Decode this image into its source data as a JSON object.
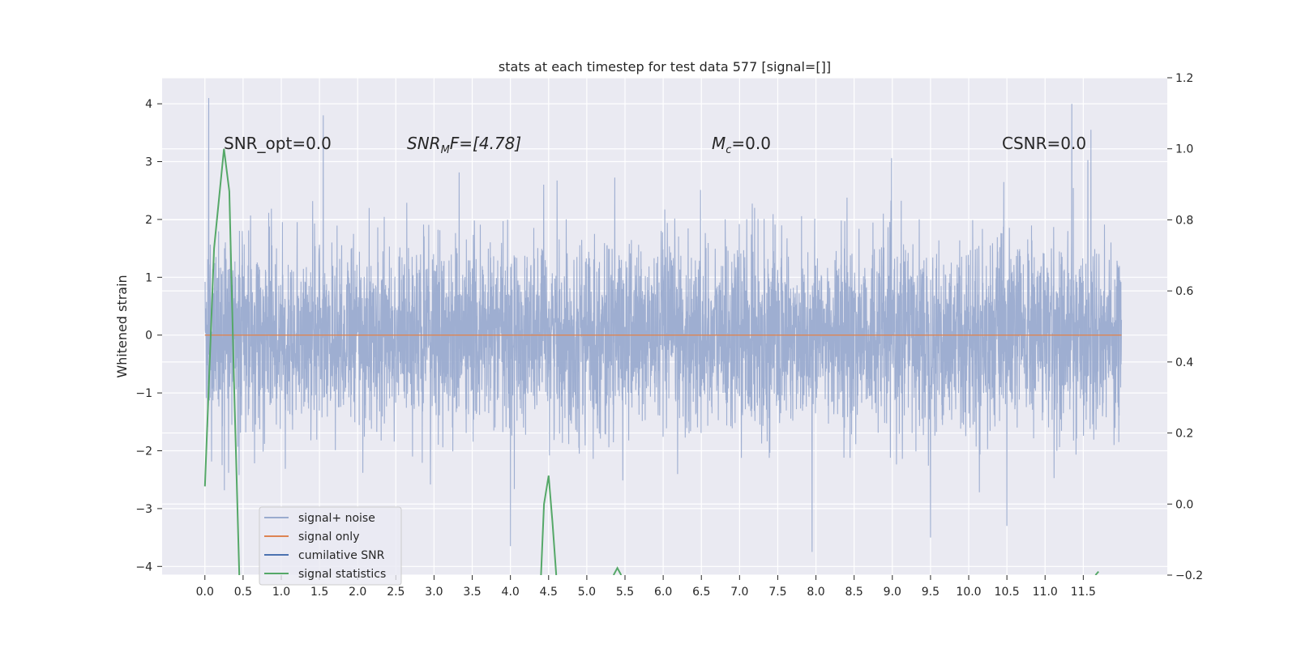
{
  "chart_data": {
    "type": "line",
    "title": "stats at each timestep for test data 577 [signal=[]]",
    "xlabel": "",
    "ylabel": "Whitened strain",
    "xlim": [
      -0.56,
      12.6
    ],
    "ylim": [
      -4.15,
      4.45
    ],
    "y2lim": [
      -0.2,
      1.2
    ],
    "grid": true,
    "legend_position": "lower-left",
    "x_ticks": [
      "0.0",
      "0.5",
      "1.0",
      "1.5",
      "2.0",
      "2.5",
      "3.0",
      "3.5",
      "4.0",
      "4.5",
      "5.0",
      "5.5",
      "6.0",
      "6.5",
      "7.0",
      "7.5",
      "8.0",
      "8.5",
      "9.0",
      "9.5",
      "10.0",
      "10.5",
      "11.0",
      "11.5"
    ],
    "y_ticks": [
      "4",
      "3",
      "2",
      "1",
      "0",
      "−1",
      "−2",
      "−3",
      "−4"
    ],
    "y2_ticks": [
      "1.2",
      "1.0",
      "0.8",
      "0.6",
      "0.4",
      "0.2",
      "0.0",
      "−0.2"
    ],
    "annotations": {
      "snr_opt": "SNR_opt=0.0",
      "snr_mf_main": "SNR",
      "snr_mf_sub": "M",
      "snr_mf_rest": "F=[4.78]",
      "mc_main": "M",
      "mc_sub": "c",
      "mc_rest": "=0.0",
      "csnr": "CSNR=0.0"
    },
    "series": [
      {
        "name": "signal+ noise",
        "color": "#9aabcf",
        "x_range": [
          0.0,
          12.0
        ],
        "approx_rms": 0.8,
        "approx_range": [
          -3.8,
          4.1
        ],
        "notable_peaks": [
          [
            0.05,
            4.1
          ],
          [
            1.55,
            3.8
          ],
          [
            11.35,
            4.0
          ],
          [
            11.6,
            3.55
          ],
          [
            7.95,
            -3.75
          ],
          [
            4.0,
            -3.65
          ],
          [
            10.5,
            -3.3
          ],
          [
            9.5,
            -3.5
          ]
        ]
      },
      {
        "name": "signal only",
        "color": "#dd8452",
        "x": [
          0.0,
          12.0
        ],
        "y": [
          0.0,
          0.0
        ]
      },
      {
        "name": "cumilative SNR",
        "color": "#4c72b0",
        "x": [],
        "y": []
      },
      {
        "name": "signal statistics",
        "color": "#55a868",
        "axis": "right",
        "segments": [
          {
            "x": [
              0.0,
              0.12,
              0.25,
              0.32,
              0.38,
              0.45
            ],
            "y": [
              0.05,
              0.72,
              1.0,
              0.88,
              0.35,
              -0.2
            ]
          },
          {
            "x": [
              4.4,
              4.44,
              4.5,
              4.55,
              4.6
            ],
            "y": [
              -0.2,
              0.0,
              0.08,
              -0.05,
              -0.2
            ]
          },
          {
            "x": [
              5.35,
              5.4,
              5.45
            ],
            "y": [
              -0.2,
              -0.18,
              -0.2
            ]
          },
          {
            "x": [
              11.66,
              11.7
            ],
            "y": [
              -0.2,
              -0.19
            ]
          }
        ]
      }
    ]
  }
}
